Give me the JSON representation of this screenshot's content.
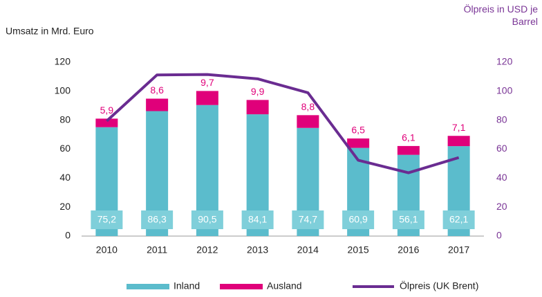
{
  "chart_data": {
    "type": "bar",
    "y_label": "Umsatz in Mrd. Euro",
    "y2_label": "Ölpreis in USD je Barrel",
    "categories": [
      "2010",
      "2011",
      "2012",
      "2013",
      "2014",
      "2015",
      "2016",
      "2017"
    ],
    "stacked": true,
    "series": [
      {
        "name": "Inland",
        "color": "#5bbccc",
        "values": [
          75.2,
          86.3,
          90.5,
          84.1,
          74.7,
          60.9,
          56.1,
          62.1
        ],
        "value_labels": [
          "75,2",
          "86,3",
          "90,5",
          "84,1",
          "74,7",
          "60,9",
          "56,1",
          "62,1"
        ]
      },
      {
        "name": "Ausland",
        "color": "#e0007a",
        "values": [
          5.9,
          8.6,
          9.7,
          9.9,
          8.8,
          6.5,
          6.1,
          7.1
        ],
        "value_labels": [
          "5,9",
          "8,6",
          "9,7",
          "9,9",
          "8,8",
          "6,5",
          "6,1",
          "7,1"
        ]
      },
      {
        "name": "Ölpreis (UK Brent)",
        "type": "line",
        "axis": "y2",
        "color": "#6a2c91",
        "values": [
          79.5,
          111.3,
          111.6,
          108.6,
          99,
          52.4,
          43.7,
          54.2
        ]
      }
    ],
    "ylim": [
      0,
      120
    ],
    "yticks": [
      0,
      20,
      40,
      60,
      80,
      100,
      120
    ],
    "y2lim": [
      0,
      120
    ],
    "y2ticks": [
      0,
      20,
      40,
      60,
      80,
      100,
      120
    ],
    "grid": false,
    "legend": "bottom"
  }
}
